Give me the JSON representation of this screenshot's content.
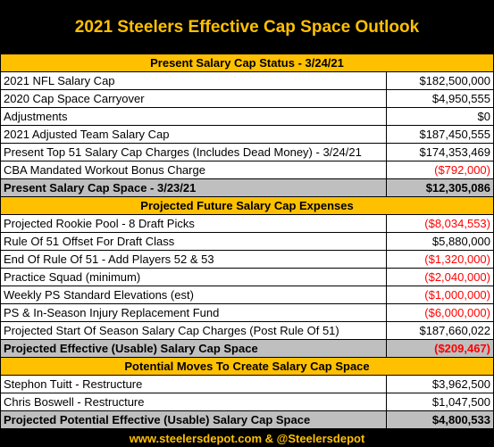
{
  "title": "2021 Steelers Effective Cap Space Outlook",
  "sections": [
    {
      "title": "Present Salary Cap Status - 3/24/21",
      "rows": [
        {
          "label": "2021 NFL Salary Cap",
          "value": "$182,500,000",
          "color": "#000000"
        },
        {
          "label": "2020 Cap Space Carryover",
          "value": "$4,950,555",
          "color": "#000000"
        },
        {
          "label": "Adjustments",
          "value": "$0",
          "color": "#000000"
        },
        {
          "label": "2021 Adjusted Team Salary Cap",
          "value": "$187,450,555",
          "color": "#000000"
        },
        {
          "label": "Present Top 51 Salary Cap Charges (Includes Dead Money) - 3/24/21",
          "value": "$174,353,469",
          "color": "#000000"
        },
        {
          "label": "CBA Mandated Workout Bonus Charge",
          "value": "($792,000)",
          "color": "#ff0000"
        }
      ],
      "total": {
        "label": "Present Salary Cap Space - 3/23/21",
        "value": "$12,305,086",
        "color": "#000000"
      }
    },
    {
      "title": "Projected Future Salary Cap Expenses",
      "rows": [
        {
          "label": "Projected Rookie Pool - 8 Draft Picks",
          "value": "($8,034,553)",
          "color": "#ff0000"
        },
        {
          "label": "Rule Of 51 Offset For Draft Class",
          "value": "$5,880,000",
          "color": "#000000"
        },
        {
          "label": "End Of Rule Of 51 - Add Players 52 & 53",
          "value": "($1,320,000)",
          "color": "#ff0000"
        },
        {
          "label": "Practice Squad (minimum)",
          "value": "($2,040,000)",
          "color": "#ff0000"
        },
        {
          "label": "Weekly PS Standard Elevations (est)",
          "value": "($1,000,000)",
          "color": "#ff0000"
        },
        {
          "label": "PS & In-Season Injury Replacement Fund",
          "value": "($6,000,000)",
          "color": "#ff0000"
        },
        {
          "label": "Projected Start Of Season Salary Cap Charges (Post Rule Of 51)",
          "value": "$187,660,022",
          "color": "#000000"
        }
      ],
      "total": {
        "label": "Projected Effective (Usable) Salary Cap Space",
        "value": "($209,467)",
        "color": "#ff0000"
      }
    },
    {
      "title": "Potential Moves To Create Salary Cap Space",
      "rows": [
        {
          "label": "Stephon Tuitt - Restructure",
          "value": "$3,962,500",
          "color": "#000000"
        },
        {
          "label": "Chris Boswell - Restructure",
          "value": "$1,047,500",
          "color": "#000000"
        }
      ],
      "total": {
        "label": "Projected Potential Effective (Usable) Salary Cap Space",
        "value": "$4,800,533",
        "color": "#000000"
      }
    }
  ],
  "footer": "www.steelersdepot.com & @Steelersdepot"
}
